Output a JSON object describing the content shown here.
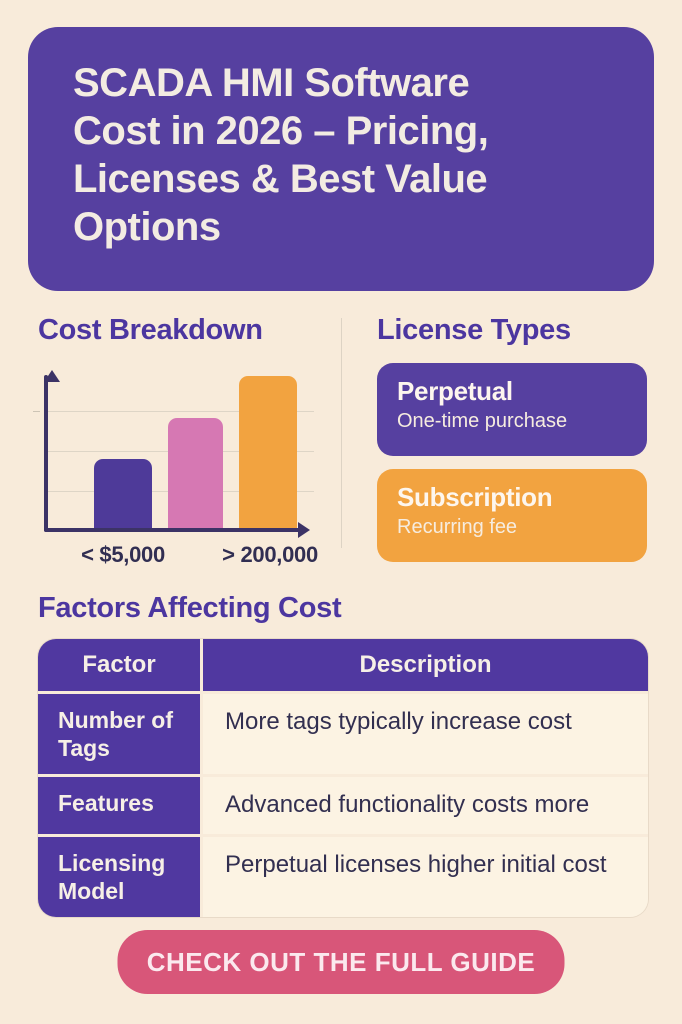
{
  "header": {
    "title": "SCADA HMI Software\nCost in 2026 – Pricing,\nLicenses & Best Value\nOptions"
  },
  "cost_breakdown": {
    "heading": "Cost Breakdown"
  },
  "chart_data": {
    "type": "bar",
    "title": "Cost Breakdown",
    "categories": [
      "< $5,000",
      "",
      "> 200,000"
    ],
    "values": [
      43,
      68,
      94
    ],
    "colors": [
      "#4e3a99",
      "#d678b3",
      "#f2a340"
    ],
    "xlabel": "",
    "ylabel": "",
    "ylim": [
      0,
      100
    ],
    "grid": true,
    "legend": false,
    "axis_note": "unlabeled y-axis, values are relative bar heights in % of axis height"
  },
  "license_types": {
    "heading": "License Types",
    "cards": [
      {
        "title": "Perpetual",
        "subtitle": "One-time purchase",
        "bg": "#5640a0"
      },
      {
        "title": "Subscription",
        "subtitle": "Recurring fee",
        "bg": "#f2a340"
      }
    ]
  },
  "factors": {
    "heading": "Factors Affecting Cost",
    "table": {
      "columns": [
        "Factor",
        "Description"
      ],
      "rows": [
        {
          "factor": "Number of Tags",
          "description": "More tags typically increase cost"
        },
        {
          "factor": "Features",
          "description": "Advanced functionality costs more"
        },
        {
          "factor": "Licensing Model",
          "description": "Perpetual licenses higher initial cost"
        }
      ]
    }
  },
  "cta": {
    "label": "CHECK OUT THE FULL GUIDE",
    "bg": "#d85679"
  },
  "colors": {
    "page_bg": "#f8ebda",
    "accent_purple": "#5640a0",
    "table_purple": "#5038a0",
    "accent_orange": "#f2a340",
    "bar_pink": "#d678b3",
    "cta_pink": "#d85679",
    "heading_purple": "#4c36a0",
    "axis_navy": "#3c3366",
    "text_dark": "#322f50",
    "cell_bg": "#fcf3e3"
  }
}
